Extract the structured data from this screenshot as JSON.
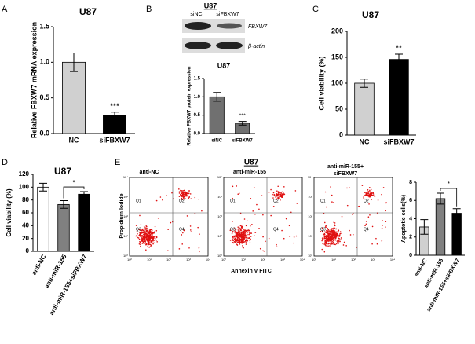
{
  "panel_labels": [
    "A",
    "B",
    "C",
    "D",
    "E"
  ],
  "blot": {
    "title": "U87",
    "lanes": [
      "siNC",
      "siFBXW7"
    ],
    "rows": [
      "FBXW7",
      "β-actin"
    ]
  },
  "flow": {
    "title": "U87",
    "groups": [
      "anti-NC",
      "anti-miR-155",
      "anti-miR-155+",
      "siFBXW7"
    ],
    "ylabel": "Propidium Iodide",
    "xlabel": "Annexin V FITC",
    "quadrants": [
      "Q1",
      "Q2",
      "Q3",
      "Q4"
    ],
    "ticks": [
      "10⁰",
      "10¹",
      "10²",
      "10³",
      "10⁴"
    ]
  },
  "chart_data": [
    {
      "type": "bar",
      "title": "U87",
      "ylabel": "Relative FBXW7 mRNA expression",
      "categories": [
        "NC",
        "siFBXW7"
      ],
      "values": [
        1.0,
        0.25
      ],
      "errors": [
        0.13,
        0.05
      ],
      "colors": [
        "#d0d0d0",
        "#000000"
      ],
      "ylim": [
        0,
        1.5
      ],
      "yticks": [
        {
          "value": 0,
          "label": "0.0"
        },
        0.5,
        {
          "value": 1,
          "label": "1.0"
        },
        1.5
      ],
      "annotations": [
        "***"
      ]
    },
    {
      "type": "bar",
      "title": "U87",
      "ylabel": "Relative FBXW7 protein expression",
      "categories": [
        "siNC",
        "siFBXW7"
      ],
      "values": [
        1.0,
        0.28
      ],
      "errors": [
        0.12,
        0.05
      ],
      "colors": [
        "#707070",
        "#707070"
      ],
      "ylim": [
        0,
        1.5
      ],
      "yticks": [
        {
          "value": 0,
          "label": "0.0"
        },
        0.5,
        {
          "value": 1,
          "label": "1.0"
        },
        1.5
      ],
      "annotations": [
        "***"
      ]
    },
    {
      "type": "bar",
      "title": "U87",
      "ylabel": "Cell viability (%)",
      "categories": [
        "NC",
        "siFBXW7"
      ],
      "values": [
        100,
        146
      ],
      "errors": [
        8,
        10
      ],
      "colors": [
        "#d0d0d0",
        "#000000"
      ],
      "ylim": [
        0,
        200
      ],
      "yticks": [
        0,
        50,
        100,
        150,
        200
      ],
      "annotations": [
        "**"
      ]
    },
    {
      "type": "bar",
      "title": "U87",
      "ylabel": "Cell viability (%)",
      "categories": [
        "anti-NC",
        "anti-miR-155",
        "anti-miR-155+siFBXW7"
      ],
      "values": [
        100,
        73,
        89
      ],
      "errors": [
        6,
        6,
        4
      ],
      "colors": [
        "#ffffff",
        "#808080",
        "#000000"
      ],
      "ylim": [
        0,
        120
      ],
      "yticks": [
        0,
        20,
        40,
        60,
        80,
        100,
        120
      ],
      "annotations": [
        "*"
      ]
    },
    {
      "type": "bar",
      "ylabel": "Apoptotic cells(%)",
      "categories": [
        "anti-NC",
        "anti-miR-155",
        "anti-miR-155+siFBXW7"
      ],
      "values": [
        3.1,
        6.2,
        4.6
      ],
      "errors": [
        0.8,
        0.6,
        0.5
      ],
      "colors": [
        "#d0d0d0",
        "#808080",
        "#000000"
      ],
      "ylim": [
        0,
        8
      ],
      "yticks": [
        0,
        2,
        4,
        6,
        8
      ],
      "annotations": [
        "*"
      ]
    }
  ]
}
